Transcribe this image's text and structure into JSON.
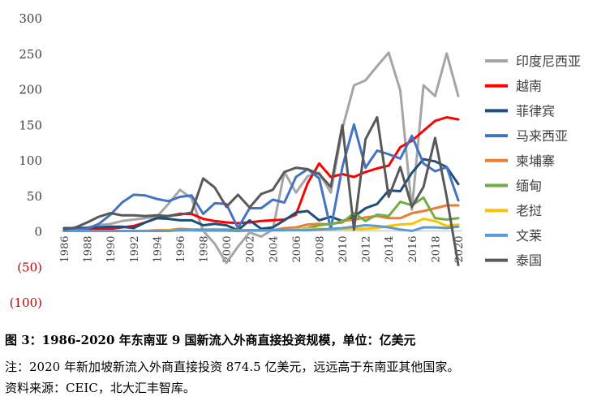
{
  "chart_data": {
    "type": "line",
    "title": "",
    "xlabel": "",
    "ylabel": "",
    "x": [
      1986,
      1987,
      1988,
      1989,
      1990,
      1991,
      1992,
      1993,
      1994,
      1995,
      1996,
      1997,
      1998,
      1999,
      2000,
      2001,
      2002,
      2003,
      2004,
      2005,
      2006,
      2007,
      2008,
      2009,
      2010,
      2011,
      2012,
      2013,
      2014,
      2015,
      2016,
      2017,
      2018,
      2019,
      2020
    ],
    "x_tick_labels": [
      "1986",
      "1988",
      "1990",
      "1992",
      "1994",
      "1996",
      "1998",
      "2000",
      "2002",
      "2004",
      "2006",
      "2008",
      "2010",
      "2012",
      "2014",
      "2016",
      "2018",
      "2020"
    ],
    "ylim": [
      -100,
      300
    ],
    "y_ticks": [
      300,
      250,
      200,
      150,
      100,
      50,
      0,
      -50,
      -100
    ],
    "y_tick_labels": [
      "300",
      "250",
      "200",
      "150",
      "100",
      "50",
      "0",
      "(50)",
      "(100)"
    ],
    "negative_tick_color": "#C00000",
    "legend_position": "right",
    "series": [
      {
        "name": "印度尼西亚",
        "color": "#A5A5A5",
        "values": [
          3,
          4,
          5,
          8,
          10,
          14,
          16,
          18,
          20,
          38,
          58,
          46,
          0,
          -18,
          -45,
          -22,
          -2,
          -8,
          2,
          83,
          54,
          77,
          82,
          54,
          144,
          205,
          212,
          232,
          251,
          198,
          30,
          205,
          190,
          250,
          190
        ]
      },
      {
        "name": "越南",
        "color": "#FF0000",
        "values": [
          0,
          0,
          1,
          2,
          3,
          5,
          7,
          12,
          18,
          21,
          24,
          24,
          17,
          14,
          12,
          11,
          12,
          14,
          15,
          16,
          23,
          67,
          95,
          76,
          80,
          76,
          83,
          88,
          92,
          118,
          127,
          141,
          155,
          160,
          157
        ]
      },
      {
        "name": "菲律宾",
        "color": "#1F4E79",
        "values": [
          4,
          4,
          4,
          5,
          6,
          6,
          4,
          12,
          18,
          17,
          15,
          15,
          8,
          10,
          8,
          1,
          15,
          3,
          5,
          15,
          26,
          28,
          15,
          20,
          14,
          20,
          32,
          38,
          57,
          56,
          82,
          101,
          98,
          90,
          66
        ]
      },
      {
        "name": "马来西亚",
        "color": "#4472C4",
        "values": [
          1,
          2,
          3,
          10,
          23,
          40,
          51,
          50,
          45,
          42,
          48,
          50,
          24,
          39,
          38,
          4,
          32,
          32,
          44,
          40,
          76,
          87,
          74,
          3,
          90,
          150,
          89,
          113,
          108,
          102,
          134,
          95,
          84,
          90,
          43
        ]
      },
      {
        "name": "柬埔寨",
        "color": "#ED7D31",
        "values": [
          0,
          0,
          0,
          0,
          0,
          0,
          0,
          0,
          1,
          1,
          3,
          2,
          2,
          2,
          2,
          1,
          1,
          1,
          1,
          4,
          5,
          9,
          10,
          9,
          14,
          16,
          19,
          21,
          18,
          18,
          25,
          28,
          32,
          36,
          36
        ]
      },
      {
        "name": "缅甸",
        "color": "#70AD47",
        "values": [
          0,
          0,
          0,
          0,
          0,
          0,
          0,
          0,
          0,
          1,
          1,
          1,
          1,
          1,
          1,
          1,
          0,
          1,
          1,
          1,
          2,
          4,
          8,
          10,
          12,
          25,
          14,
          23,
          21,
          41,
          36,
          47,
          18,
          16,
          18
        ]
      },
      {
        "name": "老挝",
        "color": "#FFC000",
        "values": [
          0,
          0,
          0,
          0,
          0,
          0,
          0,
          0,
          0,
          1,
          1,
          1,
          0,
          0,
          0,
          0,
          0,
          0,
          1,
          1,
          2,
          3,
          3,
          2,
          3,
          3,
          3,
          4,
          7,
          9,
          10,
          17,
          14,
          7,
          9
        ]
      },
      {
        "name": "文莱",
        "color": "#5B9BD5",
        "values": [
          0,
          0,
          0,
          0,
          0,
          0,
          0,
          0,
          0,
          0,
          1,
          1,
          1,
          1,
          1,
          0,
          1,
          1,
          1,
          1,
          1,
          1,
          2,
          3,
          4,
          6,
          8,
          7,
          5,
          2,
          0,
          5,
          5,
          4,
          6
        ]
      },
      {
        "name": "泰国",
        "color": "#595959",
        "values": [
          2,
          5,
          12,
          20,
          25,
          22,
          22,
          21,
          22,
          21,
          23,
          26,
          74,
          61,
          34,
          51,
          33,
          52,
          58,
          83,
          89,
          87,
          80,
          62,
          149,
          2,
          129,
          160,
          48,
          90,
          34,
          62,
          131,
          48,
          -48
        ]
      }
    ]
  },
  "caption": {
    "title": "图 3：1986-2020 年东南亚 9 国新流入外商直接投资规模，单位：亿美元",
    "note": "注：2020 年新加坡新流入外商直接投资 874.5 亿美元，远远高于东南亚其他国家。",
    "source": "资料来源：CEIC，北大汇丰智库。"
  }
}
